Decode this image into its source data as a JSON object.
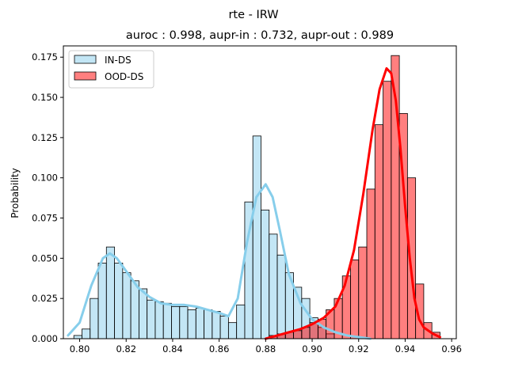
{
  "chart_data": {
    "type": "histogram",
    "title": "rte - IRW",
    "subtitle": "auroc : 0.998, aupr-in : 0.732, aupr-out : 0.989",
    "xlabel": "",
    "ylabel": "Probability",
    "xlim": [
      0.793,
      0.962
    ],
    "ylim": [
      0.0,
      0.182
    ],
    "xticks": [
      "0.80",
      "0.82",
      "0.84",
      "0.86",
      "0.88",
      "0.90",
      "0.92",
      "0.94",
      "0.96"
    ],
    "yticks": [
      "0.000",
      "0.025",
      "0.050",
      "0.075",
      "0.100",
      "0.125",
      "0.150",
      "0.175"
    ],
    "legend_position": "upper-left",
    "grid": false,
    "bin_width": 0.0035,
    "series": [
      {
        "name": "IN-DS",
        "color": "#87ceeb",
        "bar_fill": "rgba(135,206,235,0.5)",
        "bins": [
          [
            0.7975,
            0.002
          ],
          [
            0.801,
            0.006
          ],
          [
            0.8045,
            0.025
          ],
          [
            0.808,
            0.047
          ],
          [
            0.8115,
            0.057
          ],
          [
            0.815,
            0.047
          ],
          [
            0.8185,
            0.041
          ],
          [
            0.822,
            0.036
          ],
          [
            0.8255,
            0.031
          ],
          [
            0.829,
            0.024
          ],
          [
            0.8325,
            0.023
          ],
          [
            0.836,
            0.022
          ],
          [
            0.8395,
            0.02
          ],
          [
            0.843,
            0.02
          ],
          [
            0.8465,
            0.018
          ],
          [
            0.85,
            0.019
          ],
          [
            0.8535,
            0.018
          ],
          [
            0.857,
            0.017
          ],
          [
            0.8605,
            0.014
          ],
          [
            0.864,
            0.01
          ],
          [
            0.8675,
            0.021
          ],
          [
            0.871,
            0.085
          ],
          [
            0.8745,
            0.126
          ],
          [
            0.878,
            0.08
          ],
          [
            0.8815,
            0.065
          ],
          [
            0.885,
            0.052
          ],
          [
            0.8885,
            0.041
          ],
          [
            0.892,
            0.032
          ],
          [
            0.8955,
            0.025
          ],
          [
            0.899,
            0.013
          ],
          [
            0.9025,
            0.007
          ],
          [
            0.906,
            0.003
          ]
        ],
        "kde_x": [
          0.795,
          0.8,
          0.805,
          0.81,
          0.813,
          0.816,
          0.82,
          0.825,
          0.83,
          0.835,
          0.84,
          0.845,
          0.85,
          0.855,
          0.86,
          0.864,
          0.868,
          0.872,
          0.876,
          0.88,
          0.883,
          0.886,
          0.89,
          0.895,
          0.9,
          0.905,
          0.91,
          0.915,
          0.92,
          0.925
        ],
        "kde_y": [
          0.002,
          0.01,
          0.033,
          0.05,
          0.053,
          0.05,
          0.042,
          0.032,
          0.026,
          0.022,
          0.021,
          0.021,
          0.02,
          0.018,
          0.016,
          0.014,
          0.025,
          0.06,
          0.088,
          0.096,
          0.088,
          0.068,
          0.04,
          0.022,
          0.012,
          0.007,
          0.004,
          0.002,
          0.001,
          0.0
        ]
      },
      {
        "name": "OOD-DS",
        "color": "#ff0000",
        "bar_fill": "rgba(255,0,0,0.5)",
        "bins": [
          [
            0.8815,
            0.002
          ],
          [
            0.885,
            0.003
          ],
          [
            0.8885,
            0.004
          ],
          [
            0.892,
            0.005
          ],
          [
            0.8955,
            0.007
          ],
          [
            0.899,
            0.01
          ],
          [
            0.9025,
            0.012
          ],
          [
            0.906,
            0.018
          ],
          [
            0.9095,
            0.025
          ],
          [
            0.913,
            0.039
          ],
          [
            0.9165,
            0.049
          ],
          [
            0.92,
            0.057
          ],
          [
            0.9235,
            0.093
          ],
          [
            0.927,
            0.133
          ],
          [
            0.9305,
            0.16
          ],
          [
            0.934,
            0.176
          ],
          [
            0.9375,
            0.14
          ],
          [
            0.941,
            0.1
          ],
          [
            0.9445,
            0.034
          ],
          [
            0.948,
            0.01
          ],
          [
            0.9515,
            0.004
          ]
        ],
        "kde_x": [
          0.88,
          0.885,
          0.89,
          0.895,
          0.9,
          0.905,
          0.91,
          0.914,
          0.918,
          0.922,
          0.926,
          0.929,
          0.932,
          0.934,
          0.936,
          0.938,
          0.94,
          0.942,
          0.944,
          0.946,
          0.948,
          0.95,
          0.952,
          0.955
        ],
        "kde_y": [
          0.0,
          0.002,
          0.004,
          0.006,
          0.009,
          0.013,
          0.02,
          0.033,
          0.055,
          0.09,
          0.13,
          0.155,
          0.168,
          0.165,
          0.148,
          0.118,
          0.082,
          0.05,
          0.025,
          0.012,
          0.007,
          0.005,
          0.003,
          0.001
        ]
      }
    ]
  }
}
